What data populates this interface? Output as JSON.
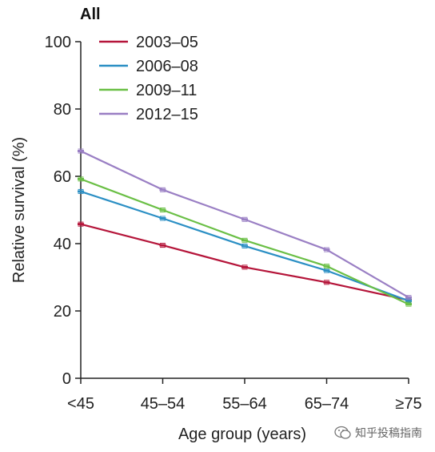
{
  "chart_data": {
    "type": "line",
    "title": "All",
    "xlabel": "Age group (years)",
    "ylabel": "Relative survival (%)",
    "categories": [
      "<45",
      "45–54",
      "55–64",
      "65–74",
      "≥75"
    ],
    "ylim": [
      0,
      100
    ],
    "yticks": [
      0,
      20,
      40,
      60,
      80,
      100
    ],
    "grid": false,
    "legend": "top-left",
    "series": [
      {
        "name": "2003–05",
        "color": "#b5153a",
        "values": [
          45.8,
          39.5,
          33.0,
          28.5,
          23.2
        ]
      },
      {
        "name": "2006–08",
        "color": "#2b8fc4",
        "values": [
          55.5,
          47.5,
          39.3,
          32.0,
          23.0
        ]
      },
      {
        "name": "2009–11",
        "color": "#6abf45",
        "values": [
          59.2,
          50.0,
          41.0,
          33.3,
          22.0
        ]
      },
      {
        "name": "2012–15",
        "color": "#9a7fc4",
        "values": [
          67.5,
          56.0,
          47.2,
          38.2,
          24.0
        ]
      }
    ]
  },
  "watermark": {
    "text": "知乎投稿指南",
    "icon": "wechat-icon"
  }
}
